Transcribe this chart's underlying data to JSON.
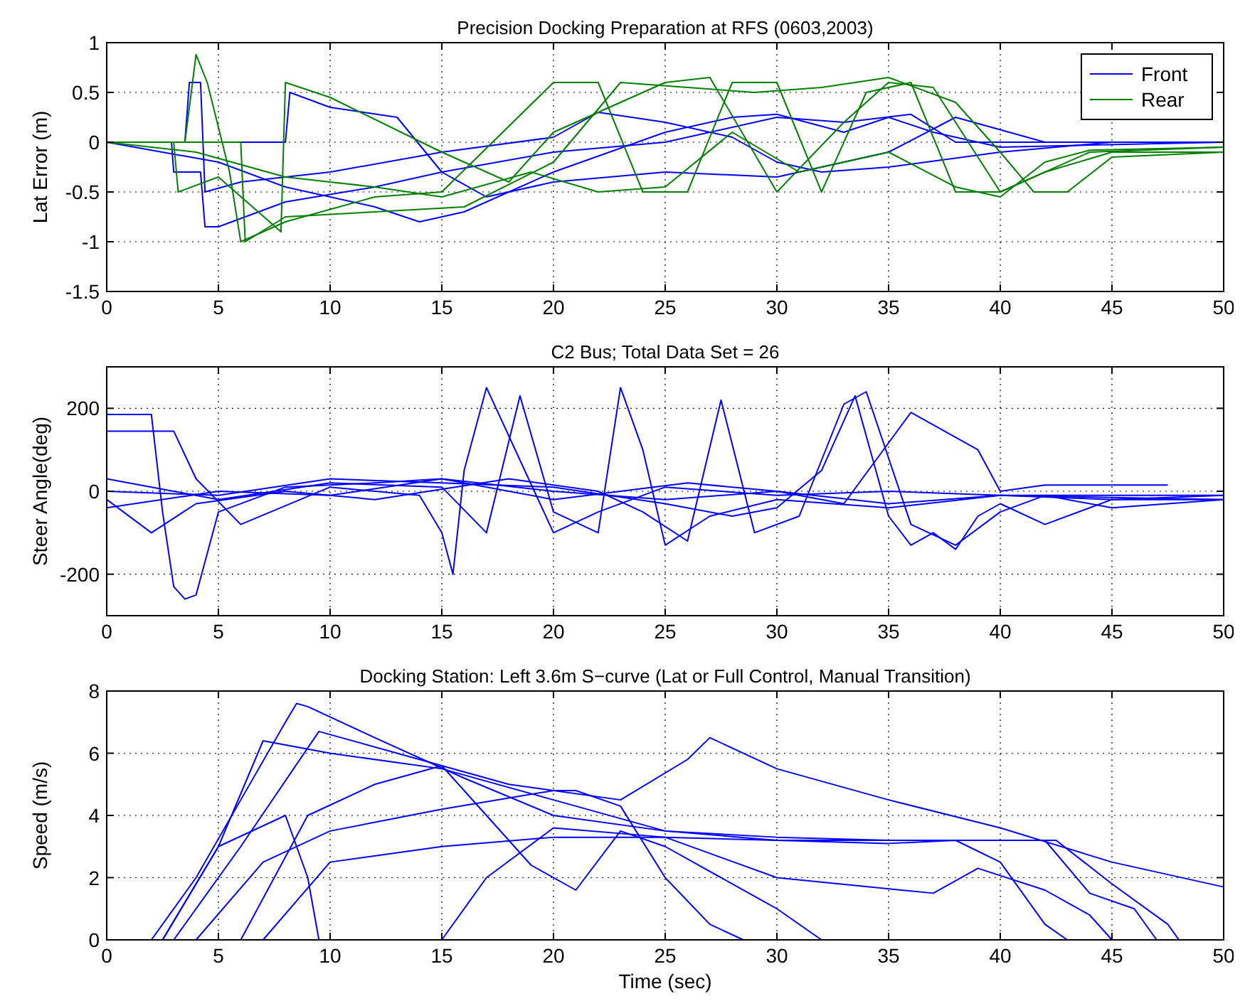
{
  "chart_data": [
    {
      "type": "line",
      "title": "Precision Docking Preparation at RFS (0603,2003)",
      "ylabel": "Lat Error (m)",
      "xlim": [
        0,
        50
      ],
      "xticks": [
        0,
        5,
        10,
        15,
        20,
        25,
        30,
        35,
        40,
        45,
        50
      ],
      "ylim": [
        -1.5,
        1
      ],
      "yticks": [
        -1.5,
        -1,
        -0.5,
        0,
        0.5,
        1
      ],
      "grid": true,
      "legend": "top right",
      "line_style": "solid",
      "series": [
        {
          "name": "Front",
          "color": "#0000ff",
          "x": [
            0,
            2.9,
            3,
            4.2,
            4.4,
            5,
            8,
            12,
            15,
            20,
            25,
            30,
            33,
            36,
            38,
            42,
            50
          ],
          "values": [
            0,
            0,
            -0.3,
            -0.3,
            -0.85,
            -0.85,
            -0.6,
            -0.45,
            -0.3,
            -0.1,
            0,
            0.25,
            0.2,
            0.28,
            0,
            0,
            0
          ]
        },
        {
          "color": "#0000ff",
          "x": [
            0,
            3.5,
            3.7,
            4.2,
            4.4,
            6,
            10,
            15,
            20,
            22,
            25,
            28,
            30,
            32,
            35,
            40,
            45,
            50
          ],
          "values": [
            0,
            0,
            0.6,
            0.6,
            -0.5,
            -0.4,
            -0.3,
            -0.1,
            0.05,
            0.3,
            0.2,
            0.05,
            -0.2,
            -0.3,
            -0.25,
            -0.1,
            0,
            0
          ]
        },
        {
          "color": "#0000ff",
          "x": [
            0,
            8,
            8.2,
            10,
            13,
            15,
            17,
            20,
            25,
            30,
            35,
            38,
            42,
            50
          ],
          "values": [
            0,
            0,
            0.5,
            0.35,
            0.25,
            -0.3,
            -0.55,
            -0.4,
            -0.3,
            -0.35,
            -0.1,
            0.25,
            0,
            0
          ]
        },
        {
          "color": "#0000ff",
          "x": [
            0,
            5,
            8,
            12,
            14,
            16,
            20,
            25,
            28,
            30,
            33,
            35,
            37,
            40,
            50
          ],
          "values": [
            0,
            -0.2,
            -0.45,
            -0.65,
            -0.8,
            -0.7,
            -0.3,
            0.1,
            0.25,
            0.28,
            0.1,
            0.25,
            0.1,
            -0.05,
            0
          ]
        },
        {
          "name": "Rear",
          "color": "#008000",
          "x": [
            0,
            3.5,
            4,
            4.5,
            5.5,
            6,
            8,
            12,
            15,
            20,
            22,
            24,
            26,
            28,
            30,
            32,
            34,
            36,
            38,
            40,
            44,
            50
          ],
          "values": [
            0,
            0,
            0.88,
            0.6,
            -0.3,
            -1,
            -0.8,
            -0.55,
            -0.5,
            0.6,
            0.6,
            -0.5,
            -0.5,
            0.6,
            0.6,
            -0.5,
            0.5,
            0.6,
            -0.5,
            -0.5,
            -0.1,
            -0.05
          ]
        },
        {
          "color": "#008000",
          "x": [
            0,
            3,
            3.2,
            5,
            7.8,
            8,
            10,
            15,
            18,
            20,
            25,
            27,
            30,
            33,
            35,
            37,
            40,
            42,
            45,
            50
          ],
          "values": [
            0,
            0,
            -0.5,
            -0.35,
            -0.9,
            0.6,
            0.45,
            -0.1,
            -0.4,
            0.1,
            0.6,
            0.65,
            -0.5,
            0.2,
            0.6,
            0.55,
            -0.5,
            -0.3,
            -0.1,
            -0.1
          ]
        },
        {
          "color": "#008000",
          "x": [
            0,
            6,
            6.2,
            8,
            12,
            16,
            20,
            23,
            26,
            29,
            32,
            35,
            38,
            40,
            41.5,
            43,
            45,
            50
          ],
          "values": [
            0,
            0,
            -1,
            -0.75,
            -0.7,
            -0.65,
            -0.2,
            0.6,
            0.55,
            0.5,
            0.55,
            0.65,
            0.4,
            -0.1,
            -0.5,
            -0.5,
            -0.15,
            -0.1
          ]
        },
        {
          "color": "#008000",
          "x": [
            0,
            4,
            8,
            12,
            15,
            19,
            22,
            25,
            28,
            31,
            35,
            38,
            40,
            42,
            44,
            50
          ],
          "values": [
            0,
            -0.1,
            -0.35,
            -0.45,
            -0.55,
            -0.3,
            -0.5,
            -0.45,
            0.1,
            -0.3,
            -0.1,
            -0.45,
            -0.55,
            -0.2,
            -0.08,
            -0.05
          ]
        }
      ]
    },
    {
      "type": "line",
      "title": "C2 Bus; Total Data Set = 26",
      "ylabel": "Steer Angle(deg)",
      "xlim": [
        0,
        50
      ],
      "xticks": [
        0,
        5,
        10,
        15,
        20,
        25,
        30,
        35,
        40,
        45,
        50
      ],
      "ylim": [
        -300,
        300
      ],
      "yticks": [
        -200,
        0,
        200
      ],
      "grid": true,
      "line_style": "solid",
      "series": [
        {
          "color": "#0000ff",
          "x": [
            0,
            2,
            2.5,
            3,
            3.5,
            4,
            5,
            8,
            12,
            15,
            20,
            25,
            30,
            35,
            40,
            45,
            50
          ],
          "values": [
            185,
            185,
            -50,
            -230,
            -260,
            -250,
            -50,
            10,
            20,
            30,
            0,
            -20,
            0,
            -30,
            -10,
            -15,
            -20
          ]
        },
        {
          "color": "#0000ff",
          "x": [
            0,
            3,
            4,
            6,
            10,
            14,
            15,
            15.5,
            16,
            17,
            20,
            22,
            25,
            30,
            35,
            40,
            50
          ],
          "values": [
            145,
            145,
            30,
            -80,
            10,
            -10,
            -100,
            -200,
            50,
            250,
            -100,
            -50,
            10,
            -10,
            0,
            -10,
            -10
          ]
        },
        {
          "color": "#0000ff",
          "x": [
            0,
            5,
            10,
            15,
            17,
            18.5,
            20,
            22,
            23,
            24,
            25,
            27,
            30,
            35,
            40,
            45,
            50
          ],
          "values": [
            30,
            -20,
            20,
            10,
            -100,
            230,
            -50,
            -100,
            250,
            100,
            -130,
            -60,
            -20,
            -40,
            -10,
            -20,
            -20
          ]
        },
        {
          "color": "#0000ff",
          "x": [
            0,
            2,
            4,
            8,
            12,
            18,
            22,
            24,
            26,
            27.5,
            29,
            31,
            33,
            34,
            36,
            38,
            40,
            42,
            45,
            50
          ],
          "values": [
            -20,
            -100,
            -30,
            0,
            -20,
            30,
            0,
            -50,
            -120,
            220,
            -100,
            -60,
            210,
            240,
            -80,
            -130,
            -50,
            -10,
            -40,
            -20
          ]
        },
        {
          "color": "#0000ff",
          "x": [
            0,
            5,
            10,
            15,
            20,
            25,
            28,
            30,
            32,
            33.5,
            35,
            36,
            37,
            38,
            39,
            40,
            42,
            45,
            50
          ],
          "values": [
            0,
            -10,
            30,
            20,
            10,
            -30,
            -60,
            -40,
            50,
            230,
            -60,
            -130,
            -100,
            -140,
            -60,
            -30,
            -80,
            -20,
            -10
          ]
        },
        {
          "color": "#0000ff",
          "x": [
            0,
            5,
            10,
            15,
            20,
            26,
            30,
            33,
            36,
            39,
            40,
            42,
            45,
            47.5
          ],
          "values": [
            -40,
            0,
            -10,
            30,
            -20,
            20,
            0,
            -30,
            190,
            100,
            0,
            15,
            15,
            15
          ]
        }
      ]
    },
    {
      "type": "line",
      "title": "Docking Station: Left 3.6m S−curve (Lat or Full Control, Manual Transition)",
      "xlabel": "Time (sec)",
      "ylabel": "Speed (m/s)",
      "xlim": [
        0,
        50
      ],
      "xticks": [
        0,
        5,
        10,
        15,
        20,
        25,
        30,
        35,
        40,
        45,
        50
      ],
      "ylim": [
        0,
        8
      ],
      "yticks": [
        0,
        2,
        4,
        6,
        8
      ],
      "grid": true,
      "line_style": "solid",
      "series": [
        {
          "color": "#0000ff",
          "x": [
            0,
            2,
            4,
            6,
            8,
            8.5,
            9,
            12,
            16,
            20,
            25,
            30,
            35,
            38,
            40,
            42,
            44,
            46,
            47,
            50
          ],
          "values": [
            0,
            0,
            2,
            4.5,
            7,
            7.6,
            7.5,
            6.5,
            5.2,
            4,
            3.5,
            3.2,
            3.2,
            3.2,
            3.2,
            3.2,
            1.5,
            1,
            0,
            0
          ]
        },
        {
          "color": "#0000ff",
          "x": [
            0,
            2.5,
            5,
            7,
            10,
            15,
            20,
            25,
            30,
            35,
            40,
            42.5,
            45,
            47.5,
            48,
            50
          ],
          "values": [
            0,
            0,
            3,
            6.4,
            6,
            5.5,
            4.5,
            3.5,
            3.3,
            3.2,
            3.2,
            3.2,
            1.8,
            0.5,
            0,
            0
          ]
        },
        {
          "color": "#0000ff",
          "x": [
            0,
            3,
            6,
            9.5,
            13,
            18,
            23,
            26,
            27,
            30,
            35,
            40,
            45,
            50
          ],
          "values": [
            0,
            0,
            3,
            6.7,
            6,
            5,
            4.5,
            5.8,
            6.5,
            5.5,
            4.5,
            3.6,
            2.5,
            1.7
          ]
        },
        {
          "color": "#0000ff",
          "x": [
            0,
            2.5,
            5,
            8,
            9,
            9.5
          ],
          "values": [
            0,
            0,
            3,
            4,
            2,
            0
          ]
        },
        {
          "color": "#0000ff",
          "x": [
            0,
            4,
            7,
            10,
            15,
            20,
            21,
            23,
            25,
            27,
            28.5,
            50
          ],
          "values": [
            0,
            0,
            2.5,
            3.5,
            4.2,
            4.8,
            4.8,
            4.3,
            2,
            0.5,
            0,
            0
          ]
        },
        {
          "color": "#0000ff",
          "x": [
            0,
            6,
            9,
            12,
            15,
            19,
            21,
            23,
            25,
            30,
            32,
            50
          ],
          "values": [
            0,
            0,
            4,
            5,
            5.6,
            2.4,
            1.6,
            3.5,
            3,
            1,
            0,
            0
          ]
        },
        {
          "color": "#0000ff",
          "x": [
            0,
            7,
            10,
            15,
            20,
            25,
            30,
            35,
            38,
            40,
            42,
            43,
            50
          ],
          "values": [
            0,
            0,
            2.5,
            3,
            3.3,
            3.3,
            3.2,
            3.1,
            3.2,
            2.5,
            0.5,
            0,
            0
          ]
        },
        {
          "color": "#0000ff",
          "x": [
            0,
            15,
            17,
            20,
            25,
            30,
            37,
            39,
            42,
            44,
            45,
            50
          ],
          "values": [
            0,
            0,
            2,
            3.6,
            3.3,
            2,
            1.5,
            2.3,
            1.6,
            0.8,
            0,
            0
          ]
        }
      ]
    }
  ]
}
